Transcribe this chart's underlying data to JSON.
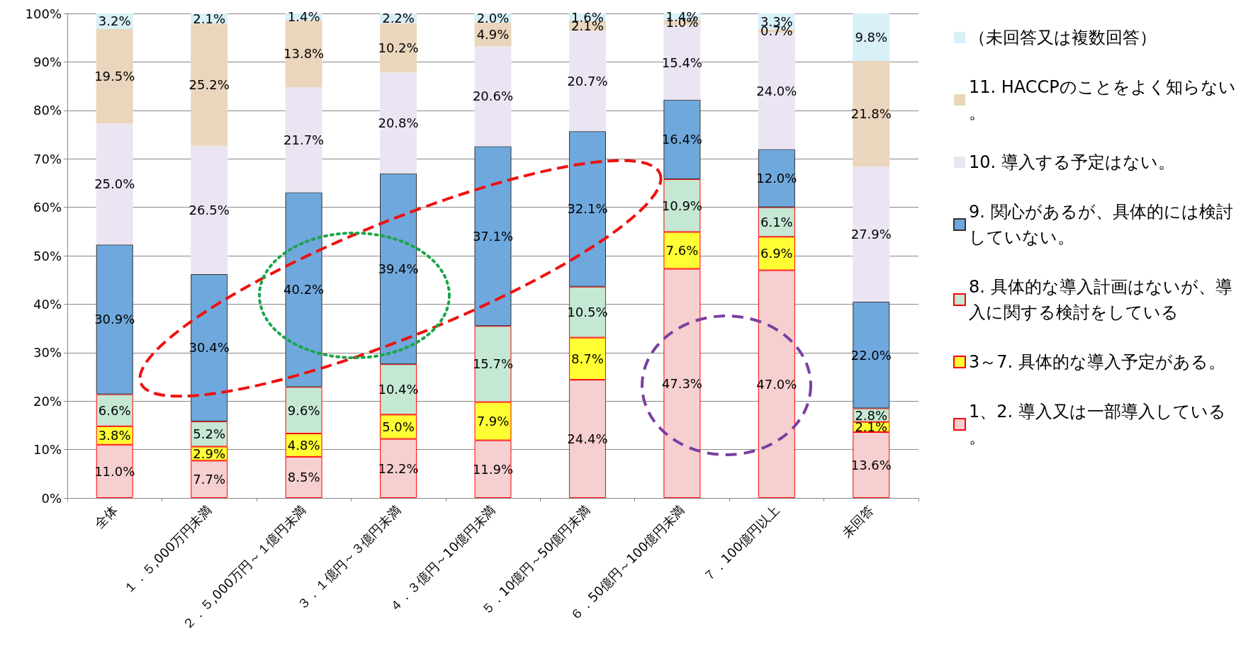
{
  "chart_data": {
    "type": "bar",
    "stacked": true,
    "categories": [
      "全体",
      "１．５,000万円未満",
      "２．５,000万円～１億円未満",
      "３．１億円～３億円未満",
      "４．３億円～10億円未満",
      "５．10億円～50億円未満",
      "６．50億円～100億円未満",
      "７．100億円以上",
      "未回答"
    ],
    "ylim": [
      0,
      100
    ],
    "yticks": [
      {
        "value": 0,
        "label": "0%"
      },
      {
        "value": 10,
        "label": "10%"
      },
      {
        "value": 20,
        "label": "20%"
      },
      {
        "value": 30,
        "label": "30%"
      },
      {
        "value": 40,
        "label": "40%"
      },
      {
        "value": 50,
        "label": "50%"
      },
      {
        "value": 60,
        "label": "60%"
      },
      {
        "value": 70,
        "label": "70%"
      },
      {
        "value": 80,
        "label": "80%"
      },
      {
        "value": 90,
        "label": "90%"
      },
      {
        "value": 100,
        "label": "100%"
      }
    ],
    "grid": "y",
    "legend": "right",
    "series": [
      {
        "name": "1、2. 導入又は一部導入している。",
        "color": "#f6cfd0",
        "values": [
          11.0,
          7.7,
          8.5,
          12.2,
          11.9,
          24.4,
          47.3,
          47.0,
          13.6
        ],
        "value_labels": [
          "11.0%",
          "7.7%",
          "8.5%",
          "12.2%",
          "11.9%",
          "24.4%",
          "47.3%",
          "47.0%",
          "13.6%"
        ]
      },
      {
        "name": "3～7. 具体的な導入予定がある。",
        "color": "#ffff33",
        "values": [
          3.8,
          2.9,
          4.8,
          5.0,
          7.9,
          8.7,
          7.6,
          6.9,
          2.1
        ],
        "value_labels": [
          "3.8%",
          "2.9%",
          "4.8%",
          "5.0%",
          "7.9%",
          "8.7%",
          "7.6%",
          "6.9%",
          "2.1%"
        ]
      },
      {
        "name": "8. 具体的な導入計画はないが、導入に関する検討をしている",
        "color": "#c4e8d4",
        "values": [
          6.6,
          5.2,
          9.6,
          10.4,
          15.7,
          10.5,
          10.9,
          6.1,
          2.8
        ],
        "value_labels": [
          "6.6%",
          "5.2%",
          "9.6%",
          "10.4%",
          "15.7%",
          "10.5%",
          "10.9%",
          "6.1%",
          "2.8%"
        ]
      },
      {
        "name": "9. 関心があるが、具体的には検討していない。",
        "color": "#6fa8dc",
        "values": [
          30.9,
          30.4,
          40.2,
          39.4,
          37.1,
          32.1,
          16.4,
          12.0,
          22.0
        ],
        "value_labels": [
          "30.9%",
          "30.4%",
          "40.2%",
          "39.4%",
          "37.1%",
          "32.1%",
          "16.4%",
          "12.0%",
          "22.0%"
        ]
      },
      {
        "name": "10. 導入する予定はない。",
        "color": "#ebe5f3",
        "values": [
          25.0,
          26.5,
          21.7,
          20.8,
          20.6,
          20.7,
          15.4,
          24.0,
          27.9
        ],
        "value_labels": [
          "25.0%",
          "26.5%",
          "21.7%",
          "20.8%",
          "20.6%",
          "20.7%",
          "15.4%",
          "24.0%",
          "27.9%"
        ]
      },
      {
        "name": "11. HACCPのことをよく知らない。",
        "color": "#ead6bd",
        "values": [
          19.5,
          25.2,
          13.8,
          10.2,
          4.9,
          2.1,
          1.0,
          0.7,
          21.8
        ],
        "value_labels": [
          "19.5%",
          "25.2%",
          "13.8%",
          "10.2%",
          "4.9%",
          "2.1%",
          "1.0%",
          "0.7%",
          "21.8%"
        ]
      },
      {
        "name": "（未回答又は複数回答）",
        "color": "#d8f0f8",
        "values": [
          3.2,
          2.1,
          1.4,
          2.2,
          2.0,
          1.6,
          1.4,
          3.3,
          9.8
        ],
        "value_labels": [
          "3.2%",
          "2.1%",
          "1.4%",
          "2.2%",
          "2.0%",
          "1.6%",
          "1.4%",
          "3.3%",
          "9.8%"
        ]
      }
    ]
  }
}
